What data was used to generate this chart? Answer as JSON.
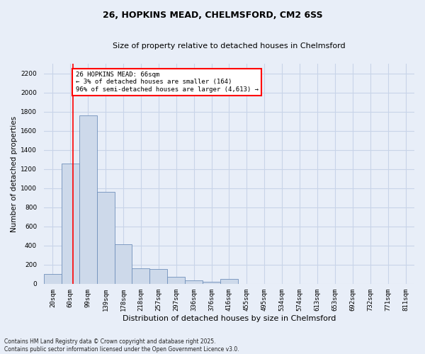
{
  "title_line1": "26, HOPKINS MEAD, CHELMSFORD, CM2 6SS",
  "title_line2": "Size of property relative to detached houses in Chelmsford",
  "xlabel": "Distribution of detached houses by size in Chelmsford",
  "ylabel": "Number of detached properties",
  "categories": [
    "20sqm",
    "60sqm",
    "99sqm",
    "139sqm",
    "178sqm",
    "218sqm",
    "257sqm",
    "297sqm",
    "336sqm",
    "376sqm",
    "416sqm",
    "455sqm",
    "495sqm",
    "534sqm",
    "574sqm",
    "613sqm",
    "653sqm",
    "692sqm",
    "732sqm",
    "771sqm",
    "811sqm"
  ],
  "values": [
    100,
    1260,
    1760,
    960,
    415,
    165,
    155,
    75,
    40,
    25,
    50,
    0,
    0,
    0,
    0,
    0,
    0,
    0,
    0,
    0,
    0
  ],
  "bar_color": "#cdd9ea",
  "bar_edge_color": "#7090bb",
  "annotation_text": "26 HOPKINS MEAD: 66sqm\n← 3% of detached houses are smaller (164)\n96% of semi-detached houses are larger (4,613) →",
  "annotation_box_color": "white",
  "annotation_box_edge_color": "red",
  "red_line_index": 1.15,
  "ylim": [
    0,
    2300
  ],
  "yticks": [
    0,
    200,
    400,
    600,
    800,
    1000,
    1200,
    1400,
    1600,
    1800,
    2000,
    2200
  ],
  "grid_color": "#c8d4e8",
  "footer_line1": "Contains HM Land Registry data © Crown copyright and database right 2025.",
  "footer_line2": "Contains public sector information licensed under the Open Government Licence v3.0.",
  "background_color": "#e8eef8",
  "title_fontsize": 9,
  "subtitle_fontsize": 8,
  "ylabel_fontsize": 7.5,
  "xlabel_fontsize": 8,
  "tick_fontsize": 6.5,
  "annotation_fontsize": 6.5,
  "footer_fontsize": 5.5
}
